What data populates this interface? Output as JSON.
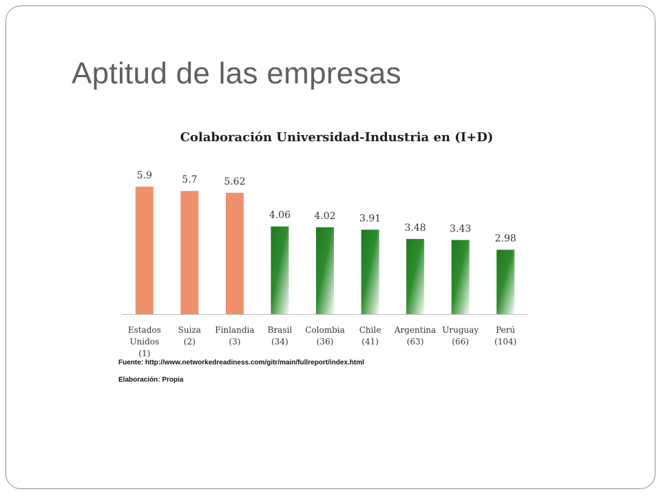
{
  "slide": {
    "title": "Aptitud de las empresas"
  },
  "chart_data": {
    "type": "bar",
    "title": "Colaboración Universidad-Industria en (I+D)",
    "categories": [
      [
        "Estados",
        "Unidos",
        "(1)"
      ],
      [
        "Suiza",
        "(2)"
      ],
      [
        "Finlandia",
        "(3)"
      ],
      [
        "Brasil",
        "(34)"
      ],
      [
        "Colombia",
        "(36)"
      ],
      [
        "Chile",
        "(41)"
      ],
      [
        "Argentina",
        "(63)"
      ],
      [
        "Uruguay",
        "(66)"
      ],
      [
        "Perú",
        "(104)"
      ]
    ],
    "values": [
      5.9,
      5.7,
      5.62,
      4.06,
      4.02,
      3.91,
      3.48,
      3.43,
      2.98
    ],
    "value_labels": [
      "5.9",
      "5.7",
      "5.62",
      "4.06",
      "4.02",
      "3.91",
      "3.48",
      "3.43",
      "2.98"
    ],
    "bar_colors": [
      "salmon",
      "salmon",
      "salmon",
      "green",
      "green",
      "green",
      "green",
      "green",
      "green"
    ],
    "colors": {
      "salmon": "#f0906c",
      "green_dark": "#1f7a1f",
      "green_light": "#ffffff"
    },
    "xlabel": "",
    "ylabel": "",
    "ylim": [
      0,
      6.25
    ],
    "grid": false,
    "legend": "none"
  },
  "footnote": {
    "source": "Fuente: http://www.networkedreadiness.com/gitr/main/fullreport/index.html",
    "author": "Elaboración: Propia"
  }
}
